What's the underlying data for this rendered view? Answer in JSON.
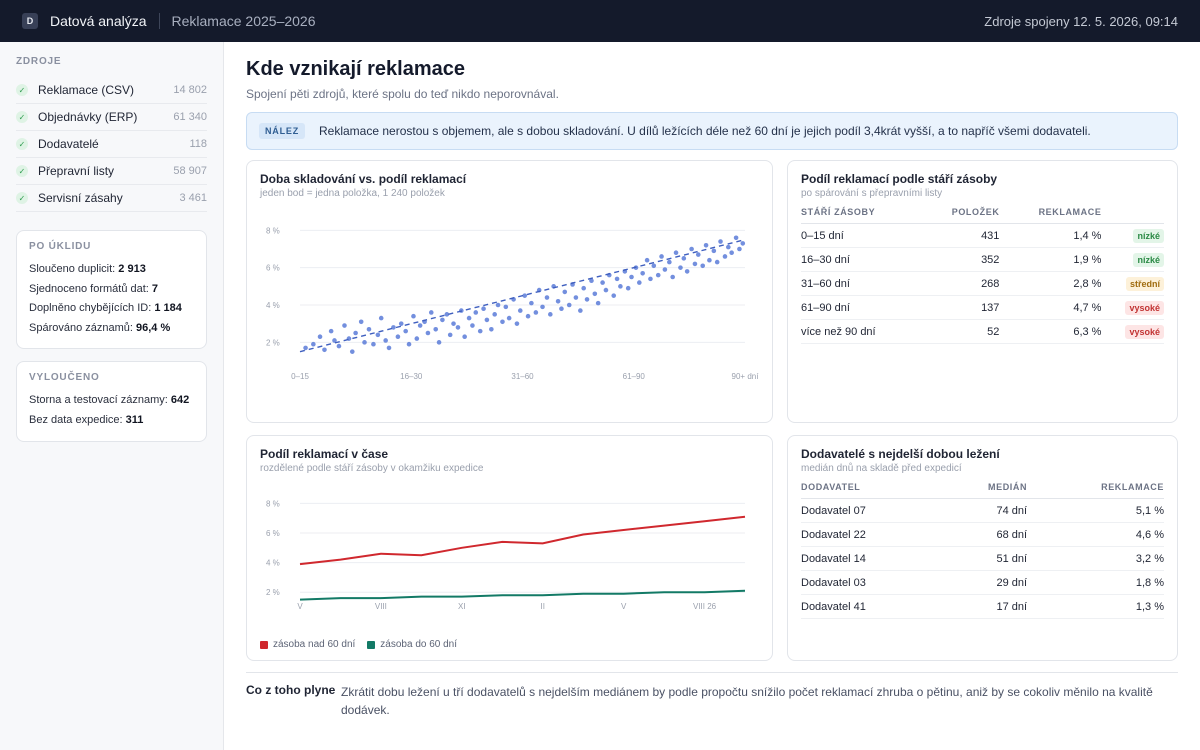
{
  "topbar": {
    "logo_letter": "D",
    "app_title": "Datová analýza",
    "project": "Reklamace 2025–2026",
    "sync_status": "Zdroje spojeny 12. 5. 2026, 09:14"
  },
  "sidebar": {
    "sources_heading": "ZDROJE",
    "sources": [
      {
        "label": "Reklamace (CSV)",
        "count": "14 802"
      },
      {
        "label": "Objednávky (ERP)",
        "count": "61 340"
      },
      {
        "label": "Dodavatelé",
        "count": "118"
      },
      {
        "label": "Přepravní listy",
        "count": "58 907"
      },
      {
        "label": "Servisní zásahy",
        "count": "3 461"
      }
    ],
    "cleanup": {
      "heading": "PO ÚKLIDU",
      "lines": [
        {
          "label": "Sloučeno duplicit:",
          "value": "2 913"
        },
        {
          "label": "Sjednoceno formátů dat:",
          "value": "7"
        },
        {
          "label": "Doplněno chybějících ID:",
          "value": "1 184"
        },
        {
          "label": "Spárováno záznamů:",
          "value": "96,4 %"
        }
      ]
    },
    "excluded": {
      "heading": "VYLOUČENO",
      "lines": [
        {
          "label": "Storna a testovací záznamy:",
          "value": "642"
        },
        {
          "label": "Bez data expedice:",
          "value": "311"
        }
      ]
    }
  },
  "main": {
    "title": "Kde vznikají reklamace",
    "subtitle": "Spojení pěti zdrojů, které spolu do teď nikdo neporovnával.",
    "finding_badge": "NÁLEZ",
    "finding_text": "Reklamace nerostou s objemem, ale s dobou skladování. U dílů ležících déle než 60 dní je jejich podíl 3,4krát vyšší, a to napříč všemi dodavateli.",
    "conclusion_label": "Co z toho plyne",
    "conclusion_text": "Zkrátit dobu ležení u tří dodavatelů s nejdelším mediánem by podle propočtu snížilo počet reklamací zhruba o pětinu, aniž by se cokoliv měnilo na kvalitě dodávek."
  },
  "scatter_card": {
    "title": "Doba skladování vs. podíl reklamací",
    "subtitle": "jeden bod = jedna položka, 1 240 položek"
  },
  "age_table": {
    "title": "Podíl reklamací podle stáří zásoby",
    "subtitle": "po spárování s přepravními listy",
    "headers": [
      "STÁŘÍ ZÁSOBY",
      "POLOŽEK",
      "REKLAMACE",
      ""
    ],
    "rows": [
      {
        "age": "0–15 dní",
        "items": "431",
        "rate": "1,4 %",
        "level": "nízké",
        "level_class": "low"
      },
      {
        "age": "16–30 dní",
        "items": "352",
        "rate": "1,9 %",
        "level": "nízké",
        "level_class": "low"
      },
      {
        "age": "31–60 dní",
        "items": "268",
        "rate": "2,8 %",
        "level": "střední",
        "level_class": "mid"
      },
      {
        "age": "61–90 dní",
        "items": "137",
        "rate": "4,7 %",
        "level": "vysoké",
        "level_class": "high"
      },
      {
        "age": "více než 90 dní",
        "items": "52",
        "rate": "6,3 %",
        "level": "vysoké",
        "level_class": "high"
      }
    ]
  },
  "line_card": {
    "title": "Podíl reklamací v čase",
    "subtitle": "rozdělené podle stáří zásoby v okamžiku expedice"
  },
  "supplier_table": {
    "title": "Dodavatelé s nejdelší dobou ležení",
    "subtitle": "medián dnů na skladě před expedicí",
    "headers": [
      "DODAVATEL",
      "MEDIÁN",
      "REKLAMACE"
    ],
    "rows": [
      {
        "name": "Dodavatel 07",
        "median": "74 dní",
        "rate": "5,1 %"
      },
      {
        "name": "Dodavatel 22",
        "median": "68 dní",
        "rate": "4,6 %"
      },
      {
        "name": "Dodavatel 14",
        "median": "51 dní",
        "rate": "3,2 %"
      },
      {
        "name": "Dodavatel 03",
        "median": "29 dní",
        "rate": "1,8 %"
      },
      {
        "name": "Dodavatel 41",
        "median": "17 dní",
        "rate": "1,3 %"
      }
    ]
  },
  "colors": {
    "scatter_point": "#5b7bd8",
    "trend_line": "#3f5fbf",
    "series_over_60": "#d0282e",
    "series_under_60": "#137a66"
  },
  "chart_data": [
    {
      "type": "scatter",
      "title": "Doba skladování vs. podíl reklamací",
      "x_categories": [
        "0–15",
        "16–30",
        "31–60",
        "61–90",
        "90+ dní"
      ],
      "yticks": [
        "2 %",
        "4 %",
        "6 %",
        "8 %"
      ],
      "ylim": [
        1,
        8.5
      ],
      "trend": {
        "from": 1.5,
        "to": 7.5
      },
      "grid": true,
      "points": [
        [
          0.05,
          1.7
        ],
        [
          0.12,
          1.9
        ],
        [
          0.18,
          2.3
        ],
        [
          0.22,
          1.6
        ],
        [
          0.28,
          2.6
        ],
        [
          0.31,
          2.1
        ],
        [
          0.35,
          1.8
        ],
        [
          0.4,
          2.9
        ],
        [
          0.44,
          2.2
        ],
        [
          0.47,
          1.5
        ],
        [
          0.5,
          2.5
        ],
        [
          0.55,
          3.1
        ],
        [
          0.58,
          2.0
        ],
        [
          0.62,
          2.7
        ],
        [
          0.66,
          1.9
        ],
        [
          0.7,
          2.4
        ],
        [
          0.73,
          3.3
        ],
        [
          0.77,
          2.1
        ],
        [
          0.8,
          1.7
        ],
        [
          0.84,
          2.8
        ],
        [
          0.88,
          2.3
        ],
        [
          0.91,
          3.0
        ],
        [
          0.95,
          2.6
        ],
        [
          0.98,
          1.9
        ],
        [
          1.02,
          3.4
        ],
        [
          1.05,
          2.2
        ],
        [
          1.08,
          2.9
        ],
        [
          1.12,
          3.1
        ],
        [
          1.15,
          2.5
        ],
        [
          1.18,
          3.6
        ],
        [
          1.22,
          2.7
        ],
        [
          1.25,
          2.0
        ],
        [
          1.28,
          3.2
        ],
        [
          1.32,
          3.5
        ],
        [
          1.35,
          2.4
        ],
        [
          1.38,
          3.0
        ],
        [
          1.42,
          2.8
        ],
        [
          1.45,
          3.7
        ],
        [
          1.48,
          2.3
        ],
        [
          1.52,
          3.3
        ],
        [
          1.55,
          2.9
        ],
        [
          1.58,
          3.6
        ],
        [
          1.62,
          2.6
        ],
        [
          1.65,
          3.8
        ],
        [
          1.68,
          3.2
        ],
        [
          1.72,
          2.7
        ],
        [
          1.75,
          3.5
        ],
        [
          1.78,
          4.0
        ],
        [
          1.82,
          3.1
        ],
        [
          1.85,
          3.9
        ],
        [
          1.88,
          3.3
        ],
        [
          1.92,
          4.3
        ],
        [
          1.95,
          3.0
        ],
        [
          1.98,
          3.7
        ],
        [
          2.02,
          4.5
        ],
        [
          2.05,
          3.4
        ],
        [
          2.08,
          4.1
        ],
        [
          2.12,
          3.6
        ],
        [
          2.15,
          4.8
        ],
        [
          2.18,
          3.9
        ],
        [
          2.22,
          4.4
        ],
        [
          2.25,
          3.5
        ],
        [
          2.28,
          5.0
        ],
        [
          2.32,
          4.2
        ],
        [
          2.35,
          3.8
        ],
        [
          2.38,
          4.7
        ],
        [
          2.42,
          4.0
        ],
        [
          2.45,
          5.1
        ],
        [
          2.48,
          4.4
        ],
        [
          2.52,
          3.7
        ],
        [
          2.55,
          4.9
        ],
        [
          2.58,
          4.3
        ],
        [
          2.62,
          5.3
        ],
        [
          2.65,
          4.6
        ],
        [
          2.68,
          4.1
        ],
        [
          2.72,
          5.2
        ],
        [
          2.75,
          4.8
        ],
        [
          2.78,
          5.6
        ],
        [
          2.82,
          4.5
        ],
        [
          2.85,
          5.4
        ],
        [
          2.88,
          5.0
        ],
        [
          2.92,
          5.8
        ],
        [
          2.95,
          4.9
        ],
        [
          2.98,
          5.5
        ],
        [
          3.02,
          6.0
        ],
        [
          3.05,
          5.2
        ],
        [
          3.08,
          5.7
        ],
        [
          3.12,
          6.4
        ],
        [
          3.15,
          5.4
        ],
        [
          3.18,
          6.1
        ],
        [
          3.22,
          5.6
        ],
        [
          3.25,
          6.6
        ],
        [
          3.28,
          5.9
        ],
        [
          3.32,
          6.3
        ],
        [
          3.35,
          5.5
        ],
        [
          3.38,
          6.8
        ],
        [
          3.42,
          6.0
        ],
        [
          3.45,
          6.5
        ],
        [
          3.48,
          5.8
        ],
        [
          3.52,
          7.0
        ],
        [
          3.55,
          6.2
        ],
        [
          3.58,
          6.7
        ],
        [
          3.62,
          6.1
        ],
        [
          3.65,
          7.2
        ],
        [
          3.68,
          6.4
        ],
        [
          3.72,
          6.9
        ],
        [
          3.75,
          6.3
        ],
        [
          3.78,
          7.4
        ],
        [
          3.82,
          6.6
        ],
        [
          3.85,
          7.1
        ],
        [
          3.88,
          6.8
        ],
        [
          3.92,
          7.6
        ],
        [
          3.95,
          7.0
        ],
        [
          3.98,
          7.3
        ]
      ]
    },
    {
      "type": "line",
      "title": "Podíl reklamací v čase",
      "x": [
        "V",
        "",
        "VIII",
        "",
        "XI",
        "",
        "II",
        "",
        "V",
        "",
        "VIII 26",
        ""
      ],
      "yticks": [
        "2 %",
        "4 %",
        "6 %",
        "8 %"
      ],
      "ylim": [
        1,
        8.5
      ],
      "series": [
        {
          "name": "zásoba nad 60 dní",
          "values": [
            3.9,
            4.2,
            4.6,
            4.5,
            5.0,
            5.4,
            5.3,
            5.9,
            6.2,
            6.5,
            6.8,
            7.1
          ]
        },
        {
          "name": "zásoba do 60 dní",
          "values": [
            1.5,
            1.6,
            1.6,
            1.7,
            1.7,
            1.8,
            1.8,
            1.9,
            1.9,
            2.0,
            2.0,
            2.1
          ]
        }
      ]
    }
  ]
}
